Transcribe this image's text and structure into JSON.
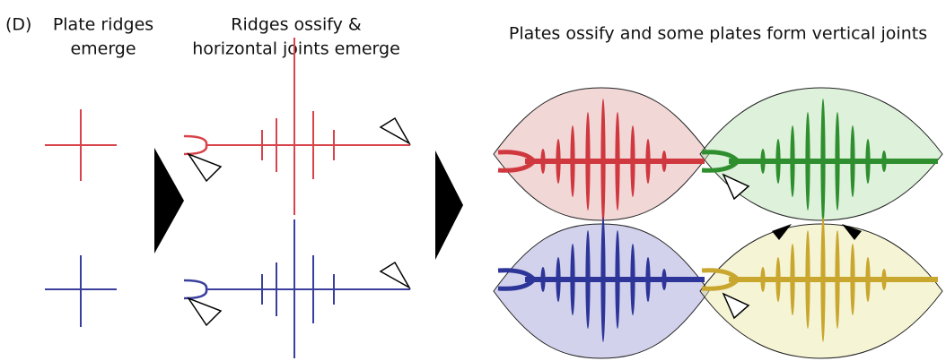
{
  "panel_label": "(D)",
  "columns": [
    {
      "title_lines": [
        "Plate ridges",
        "emerge"
      ]
    },
    {
      "title_lines": [
        "Ridges ossify &",
        "horizontal joints emerge"
      ]
    },
    {
      "title_lines": [
        "Plates ossify and some plates form vertical joints"
      ]
    }
  ]
}
